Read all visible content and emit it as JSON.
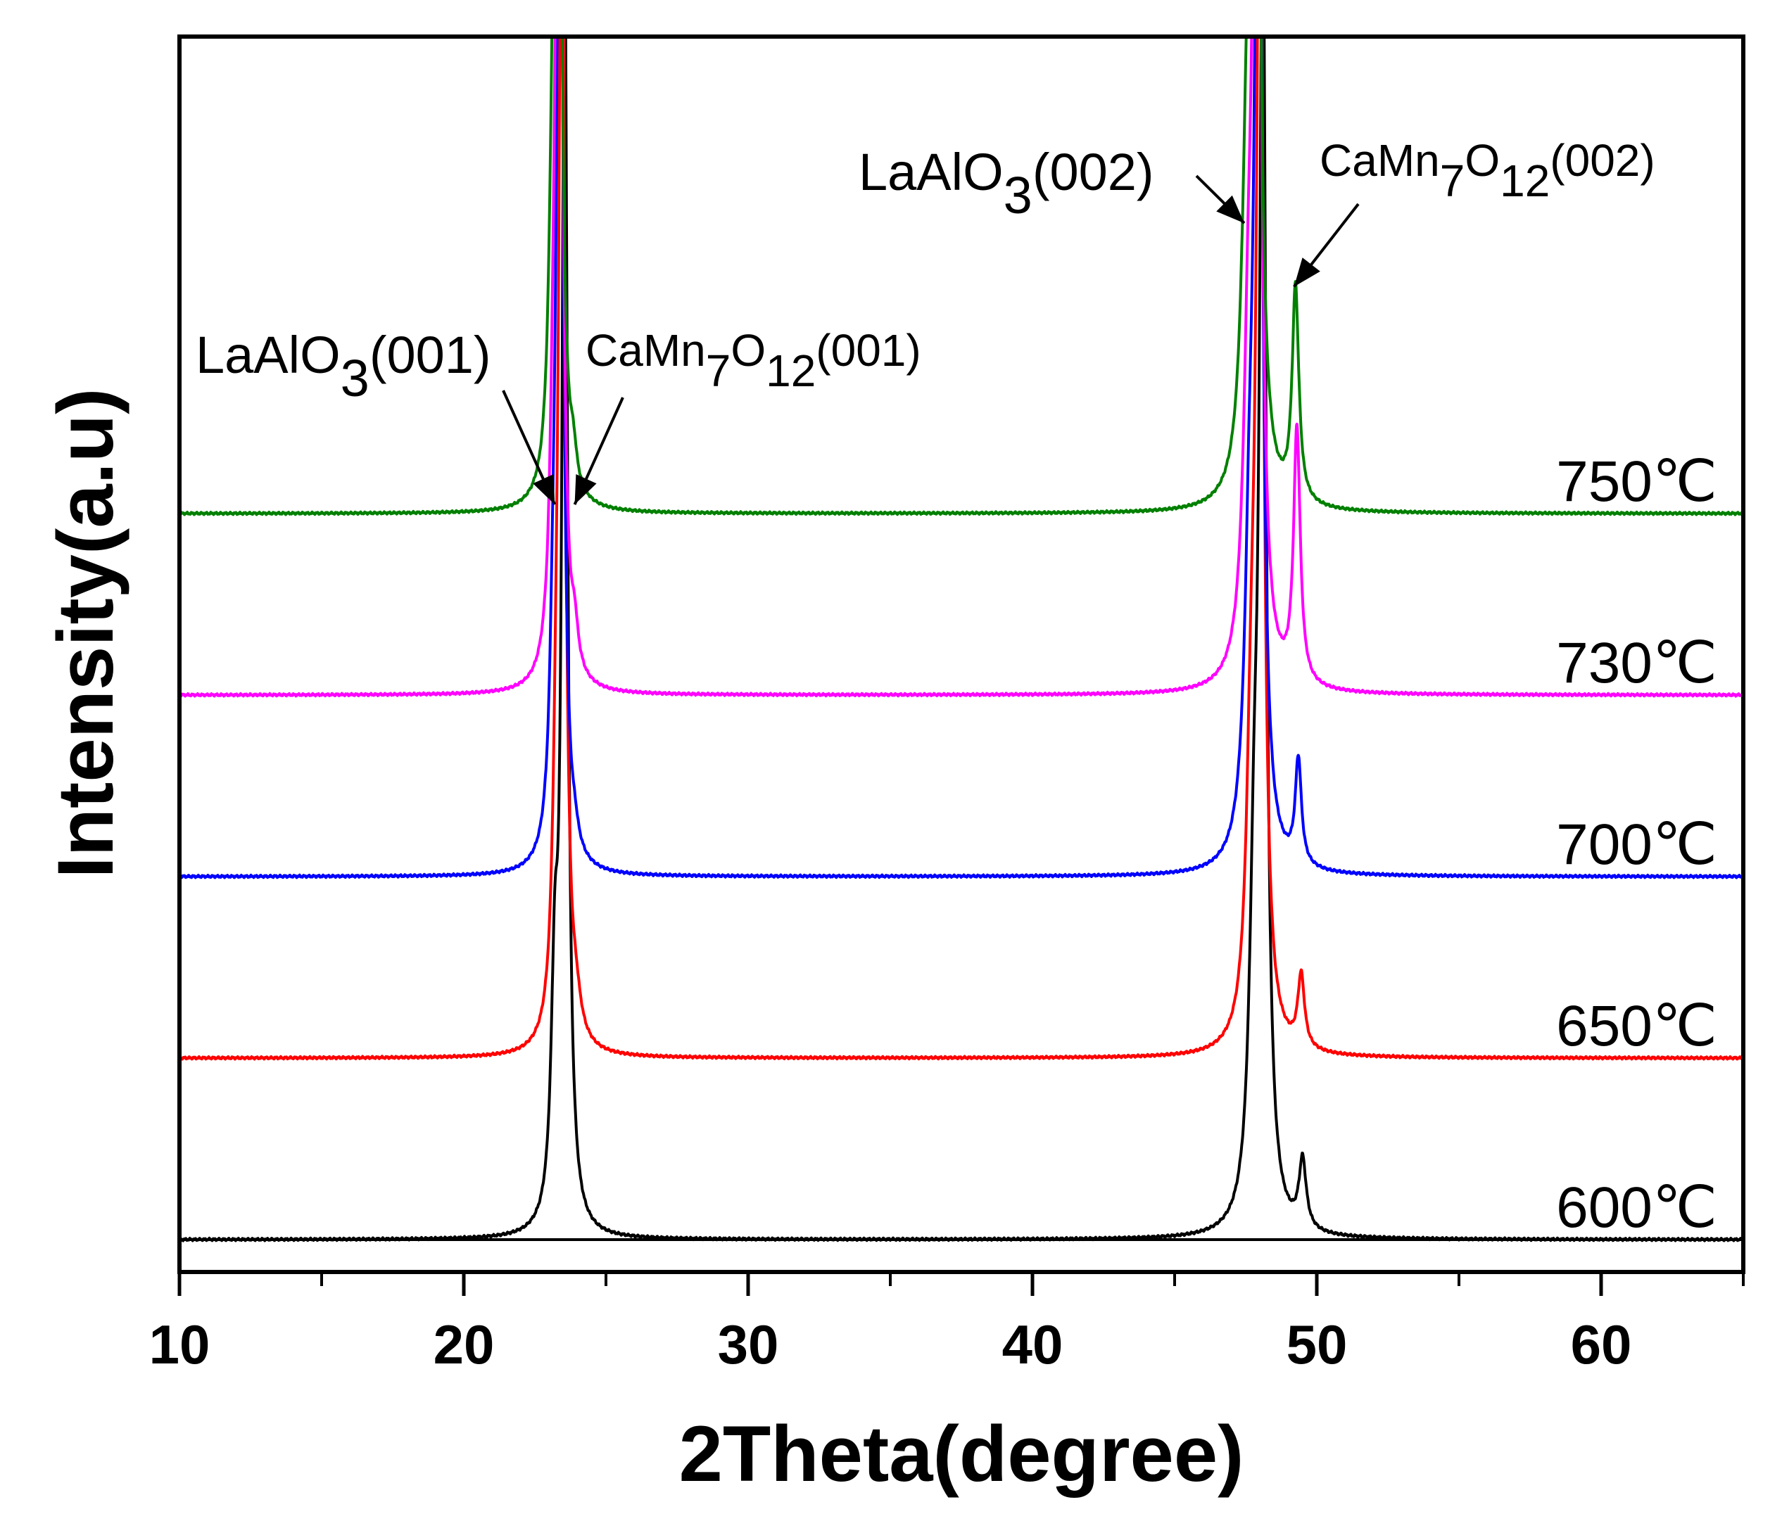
{
  "chart_data": {
    "type": "line",
    "title": "",
    "xlabel": "2Theta(degree)",
    "ylabel": "Intensity(a.u)",
    "xlim": [
      10,
      65
    ],
    "ylim": [
      0,
      6.6
    ],
    "x_ticks": [
      10,
      20,
      30,
      40,
      50,
      60
    ],
    "x_minor_ticks": [
      15,
      25,
      35,
      45,
      55,
      65
    ],
    "series": [
      {
        "name": "600℃",
        "color": "#000000",
        "offset": 0,
        "peaks": [
          {
            "center": 23.2,
            "height": 1.2,
            "width": 0.15
          },
          {
            "center": 23.55,
            "height": 7.0,
            "width": 0.12
          },
          {
            "center": 47.8,
            "height": 1.6,
            "width": 0.2
          },
          {
            "center": 48.1,
            "height": 7.0,
            "width": 0.14
          },
          {
            "center": 49.5,
            "height": 0.38,
            "width": 0.15
          }
        ]
      },
      {
        "name": "650℃",
        "color": "#ff0000",
        "offset": 1,
        "peaks": [
          {
            "center": 23.25,
            "height": 0.9,
            "width": 0.15
          },
          {
            "center": 23.45,
            "height": 7.0,
            "width": 0.12
          },
          {
            "center": 23.95,
            "height": 0.15,
            "width": 0.2
          },
          {
            "center": 47.7,
            "height": 1.4,
            "width": 0.2
          },
          {
            "center": 48.0,
            "height": 7.0,
            "width": 0.14
          },
          {
            "center": 49.45,
            "height": 0.4,
            "width": 0.14
          }
        ]
      },
      {
        "name": "700℃",
        "color": "#0000ff",
        "offset": 2,
        "peaks": [
          {
            "center": 23.15,
            "height": 0.8,
            "width": 0.15
          },
          {
            "center": 23.38,
            "height": 7.0,
            "width": 0.12
          },
          {
            "center": 23.9,
            "height": 0.08,
            "width": 0.15
          },
          {
            "center": 47.65,
            "height": 1.5,
            "width": 0.22
          },
          {
            "center": 47.95,
            "height": 7.0,
            "width": 0.14
          },
          {
            "center": 49.35,
            "height": 0.58,
            "width": 0.13
          }
        ]
      },
      {
        "name": "730℃",
        "color": "#ff00ff",
        "offset": 3,
        "peaks": [
          {
            "center": 23.15,
            "height": 0.8,
            "width": 0.15
          },
          {
            "center": 23.35,
            "height": 7.0,
            "width": 0.12
          },
          {
            "center": 23.9,
            "height": 0.2,
            "width": 0.14
          },
          {
            "center": 47.6,
            "height": 1.5,
            "width": 0.22
          },
          {
            "center": 47.9,
            "height": 7.0,
            "width": 0.14
          },
          {
            "center": 49.3,
            "height": 1.4,
            "width": 0.14
          }
        ]
      },
      {
        "name": "750℃",
        "color": "#008000",
        "offset": 4,
        "peaks": [
          {
            "center": 23.1,
            "height": 0.8,
            "width": 0.15
          },
          {
            "center": 23.3,
            "height": 7.0,
            "width": 0.12
          },
          {
            "center": 23.85,
            "height": 0.17,
            "width": 0.14
          },
          {
            "center": 47.55,
            "height": 1.6,
            "width": 0.22
          },
          {
            "center": 47.85,
            "height": 7.0,
            "width": 0.14
          },
          {
            "center": 49.25,
            "height": 1.18,
            "width": 0.14
          }
        ]
      }
    ],
    "annotations": [
      {
        "base": "LaAlO",
        "sub1": "3",
        "mid": "",
        "sub2": "",
        "hkl": "(001)",
        "x": 23.2,
        "y": 4.05
      },
      {
        "base": "CaMn",
        "sub1": "7",
        "mid": "O",
        "sub2": "12",
        "hkl": "(001)",
        "x": 23.9,
        "y": 4.05
      },
      {
        "base": "LaAlO",
        "sub1": "3",
        "mid": "",
        "sub2": "",
        "hkl": "(002)",
        "x": 47.45,
        "y": 5.6
      },
      {
        "base": "CaMn",
        "sub1": "7",
        "mid": "O",
        "sub2": "12",
        "hkl": "(002)",
        "x": 49.2,
        "y": 5.25
      }
    ]
  }
}
